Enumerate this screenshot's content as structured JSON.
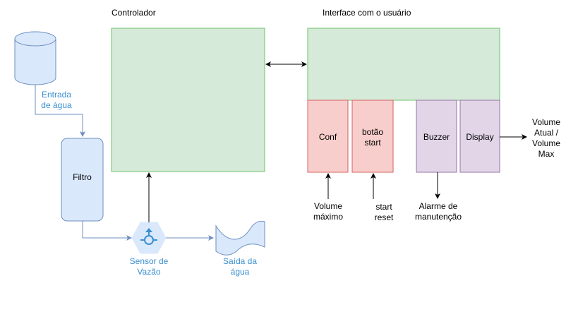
{
  "diagram": {
    "controller_label": "Controlador",
    "ui_label": "Interface com o usuário",
    "water_input_label_1": "Entrada",
    "water_input_label_2": "de água",
    "filter_label": "Filtro",
    "flow_sensor_label_1": "Sensor de",
    "flow_sensor_label_2": "Vazão",
    "water_output_label_1": "Saída da",
    "water_output_label_2": "água",
    "conf_label": "Conf",
    "start_button_label_1": "botão",
    "start_button_label_2": "start",
    "buzzer_label": "Buzzer",
    "display_label": "Display",
    "display_output_label_1": "Volume",
    "display_output_label_2": "Atual /",
    "display_output_label_3": "Volume",
    "display_output_label_4": "Max",
    "conf_input_label_1": "Volume",
    "conf_input_label_2": "máximo",
    "start_input_label_1": "start",
    "start_input_label_2": "reset",
    "buzzer_output_label_1": "Alarme de",
    "buzzer_output_label_2": "manutenção"
  },
  "colors": {
    "green_fill": "#d5ead8",
    "green_stroke": "#6ec36e",
    "red_fill": "#f8cecc",
    "red_stroke": "#d66060",
    "purple_fill": "#e1d5e7",
    "purple_stroke": "#9673a6",
    "blue_fill": "#dae8fc",
    "blue_stroke": "#6c8ebf",
    "blue_text": "#3a8fd0"
  }
}
